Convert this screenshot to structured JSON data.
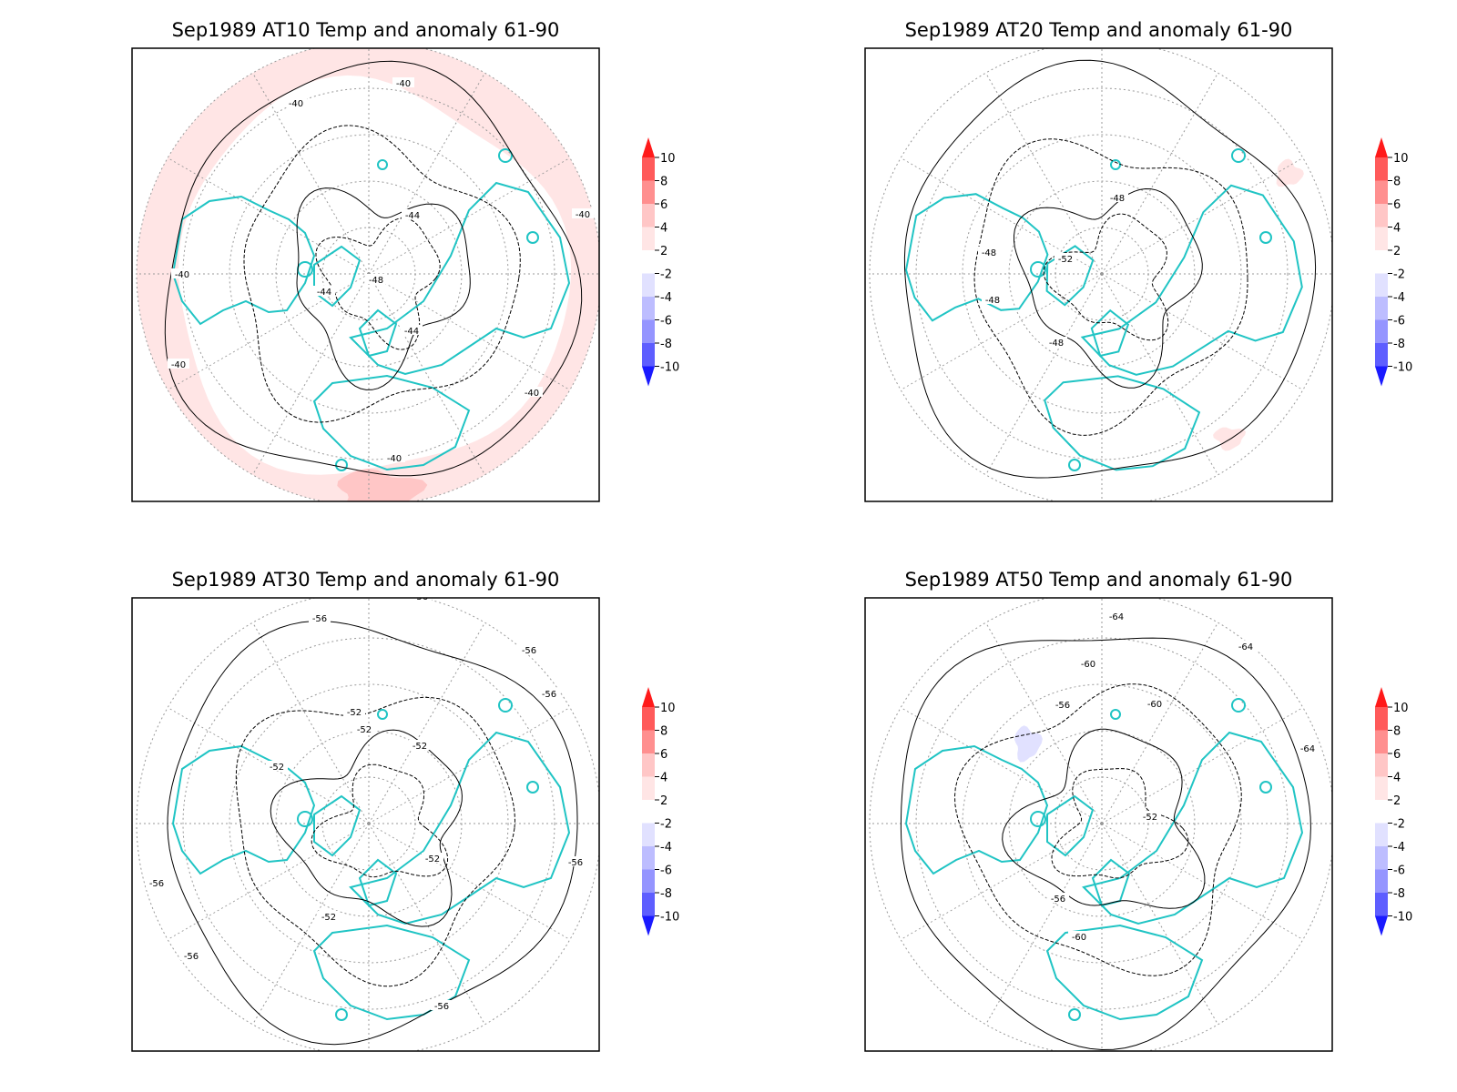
{
  "panels": [
    {
      "title": "Sep1989 AT10 Temp and anomaly 61-90",
      "contours": [
        "-40",
        "-40",
        "-40",
        "-40",
        "-40",
        "-40",
        "-40",
        "-44",
        "-44",
        "-44",
        "-48"
      ],
      "anomaly_shading": [
        "2 to 4 ring near map edge",
        "4 to 6 patch at bottom edge"
      ]
    },
    {
      "title": "Sep1989 AT20 Temp and anomaly 61-90",
      "contours": [
        "-48",
        "-48",
        "-48",
        "-52",
        "-48"
      ],
      "anomaly_shading": [
        "2 to 4 patch near right edge",
        "2 to 4 patch near lower right"
      ]
    },
    {
      "title": "Sep1989 AT30 Temp and anomaly 61-90",
      "contours": [
        "-56",
        "-56",
        "-56",
        "-56",
        "-56",
        "-56",
        "-56",
        "-56",
        "-52",
        "-52",
        "-52",
        "-52",
        "-52",
        "-52"
      ],
      "anomaly_shading": []
    },
    {
      "title": "Sep1989 AT50 Temp and anomaly 61-90",
      "contours": [
        "-64",
        "-64",
        "-64",
        "-60",
        "-60",
        "-60",
        "-56",
        "-56",
        "-52"
      ],
      "anomaly_shading": [
        "-2 to -4 patch upper left of centre"
      ]
    }
  ],
  "colorbar": {
    "labels": [
      "10",
      "8",
      "6",
      "4",
      "2",
      "-2",
      "-4",
      "-6",
      "-8",
      "-10"
    ],
    "colors": [
      "#ff1a1a",
      "#ff5a5a",
      "#ff8f8f",
      "#ffc6c6",
      "#ffe5e5",
      "#ffffff",
      "#e1e1ff",
      "#bdbdff",
      "#9595ff",
      "#5e5eff",
      "#1a1aff"
    ]
  },
  "colors": {
    "coast": "#20c4c4",
    "frame": "#000000",
    "grid": "#999999"
  }
}
